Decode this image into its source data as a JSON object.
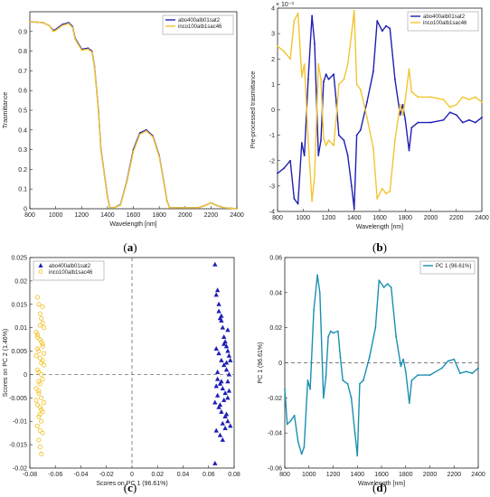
{
  "colors": {
    "blue": "#1f1fb4",
    "yellow": "#f2c531",
    "teal": "#1b8fb2",
    "orange": "#e07a3c",
    "axis": "#222222",
    "dash": "#555555"
  },
  "chart_data": [
    {
      "id": "a",
      "type": "line",
      "caption": "a",
      "xlabel": "Wavelength [nm]",
      "ylabel": "Trasmittance",
      "xlim": [
        800,
        2400
      ],
      "ylim": [
        0,
        1
      ],
      "xticks": [
        "800",
        "1000",
        "1200",
        "1400",
        "1600",
        "1800",
        "2000",
        "2200",
        "2400"
      ],
      "yticks": [
        "0",
        "0.1",
        "0.2",
        "0.3",
        "0.4",
        "0.5",
        "0.6",
        "0.7",
        "0.8",
        "0.9"
      ],
      "legend": [
        "abo400alb01sat2",
        "inco100alb1sac46"
      ],
      "legend_position": "top-right",
      "series": [
        {
          "name": "abo400alb01sat2",
          "color": "#1f1fb4",
          "x": [
            800,
            900,
            950,
            980,
            1000,
            1050,
            1100,
            1130,
            1150,
            1200,
            1250,
            1280,
            1300,
            1330,
            1350,
            1400,
            1420,
            1450,
            1500,
            1550,
            1600,
            1650,
            1700,
            1750,
            1800,
            1840,
            1860,
            1880,
            1900,
            2000,
            2100,
            2150,
            2200,
            2250,
            2300,
            2400
          ],
          "y": [
            0.95,
            0.945,
            0.93,
            0.905,
            0.91,
            0.935,
            0.945,
            0.925,
            0.865,
            0.81,
            0.815,
            0.8,
            0.72,
            0.5,
            0.3,
            0.06,
            0.005,
            0.005,
            0.02,
            0.14,
            0.3,
            0.385,
            0.4,
            0.37,
            0.27,
            0.12,
            0.04,
            0.005,
            0.005,
            0.005,
            0.005,
            0.015,
            0.03,
            0.015,
            0.005,
            0.0
          ]
        },
        {
          "name": "inco100alb1sac46",
          "color": "#f2c531",
          "x": [
            800,
            900,
            950,
            980,
            1000,
            1050,
            1100,
            1130,
            1150,
            1200,
            1250,
            1280,
            1300,
            1330,
            1350,
            1400,
            1420,
            1450,
            1500,
            1550,
            1600,
            1650,
            1700,
            1750,
            1800,
            1840,
            1860,
            1880,
            1900,
            2000,
            2100,
            2150,
            2200,
            2250,
            2300,
            2400
          ],
          "y": [
            0.95,
            0.945,
            0.93,
            0.9,
            0.905,
            0.93,
            0.94,
            0.92,
            0.86,
            0.805,
            0.81,
            0.795,
            0.715,
            0.495,
            0.295,
            0.058,
            0.005,
            0.005,
            0.018,
            0.135,
            0.29,
            0.378,
            0.395,
            0.365,
            0.265,
            0.118,
            0.038,
            0.005,
            0.005,
            0.005,
            0.005,
            0.015,
            0.03,
            0.015,
            0.005,
            0.0
          ]
        }
      ]
    },
    {
      "id": "b",
      "type": "line",
      "caption": "b",
      "xlabel": "Wavelength [nm]",
      "ylabel": "Pre-processed trasmittance",
      "exponent": "× 10⁻³",
      "xlim": [
        800,
        2400
      ],
      "ylim": [
        -4,
        4
      ],
      "xticks": [
        "800",
        "1000",
        "1200",
        "1400",
        "1600",
        "1800",
        "2000",
        "2200",
        "2400"
      ],
      "yticks": [
        "-4",
        "-3",
        "-2",
        "-1",
        "0",
        "1",
        "2",
        "3",
        "4"
      ],
      "legend": [
        "abo400alb01sat2",
        "inco100alb1sac46"
      ],
      "legend_position": "top-right",
      "series": [
        {
          "name": "abo400alb01sat2",
          "color": "#1f1fb4",
          "x": [
            800,
            850,
            900,
            930,
            960,
            990,
            1010,
            1040,
            1070,
            1090,
            1120,
            1140,
            1160,
            1180,
            1200,
            1240,
            1260,
            1280,
            1320,
            1350,
            1380,
            1400,
            1420,
            1450,
            1500,
            1550,
            1580,
            1620,
            1650,
            1680,
            1720,
            1760,
            1780,
            1800,
            1830,
            1850,
            1900,
            2000,
            2100,
            2150,
            2200,
            2250,
            2300,
            2350,
            2400
          ],
          "y": [
            -2.5,
            -2.3,
            -2.0,
            -3.5,
            -3.7,
            -1.3,
            -1.8,
            1.2,
            3.7,
            2.6,
            -1.8,
            -1.2,
            1.1,
            1.4,
            1.2,
            1.4,
            0.3,
            -1.0,
            -1.2,
            -1.8,
            -3.0,
            -3.9,
            -1.0,
            -0.8,
            0.3,
            1.5,
            3.5,
            3.1,
            3.3,
            3.2,
            1.2,
            -0.2,
            0.2,
            -0.4,
            -1.6,
            -0.7,
            -0.5,
            -0.5,
            -0.4,
            -0.1,
            -0.2,
            -0.5,
            -0.4,
            -0.5,
            -0.3
          ]
        },
        {
          "name": "inco100alb1sac46",
          "color": "#f2c531",
          "x": [
            800,
            850,
            900,
            930,
            960,
            990,
            1010,
            1040,
            1070,
            1090,
            1120,
            1140,
            1160,
            1180,
            1200,
            1240,
            1260,
            1280,
            1320,
            1350,
            1380,
            1400,
            1420,
            1450,
            1500,
            1550,
            1580,
            1620,
            1650,
            1680,
            1720,
            1760,
            1780,
            1800,
            1830,
            1850,
            1900,
            2000,
            2100,
            2150,
            2200,
            2250,
            2300,
            2350,
            2400
          ],
          "y": [
            2.5,
            2.3,
            2.0,
            3.5,
            3.8,
            1.3,
            1.8,
            -1.2,
            -3.6,
            -2.6,
            1.8,
            1.2,
            -1.1,
            -1.4,
            -1.2,
            -1.4,
            -0.3,
            1.0,
            1.2,
            1.8,
            3.0,
            3.9,
            1.0,
            0.8,
            -0.3,
            -1.5,
            -3.5,
            -3.1,
            -3.3,
            -3.2,
            -1.2,
            0.2,
            -0.2,
            0.4,
            1.6,
            0.7,
            0.5,
            0.5,
            0.4,
            0.1,
            0.2,
            0.5,
            0.4,
            0.5,
            0.3
          ]
        }
      ]
    },
    {
      "id": "c",
      "type": "scatter",
      "caption": "c",
      "xlabel": "Scores on PC 1 (96.61%)",
      "ylabel": "Scores on PC 2 (1.46%)",
      "xlim": [
        -0.08,
        0.08
      ],
      "ylim": [
        -0.02,
        0.025
      ],
      "xticks": [
        "-0.08",
        "-0.06",
        "-0.04",
        "-0.02",
        "0",
        "0.02",
        "0.04",
        "0.06",
        "0.08"
      ],
      "yticks": [
        "-0.02",
        "-0.015",
        "-0.01",
        "-0.005",
        "0",
        "0.005",
        "0.01",
        "0.015",
        "0.02",
        "0.025"
      ],
      "legend": [
        "abo400alb01sat2",
        "inco100alb1sac46"
      ],
      "legend_position": "top-left",
      "series": [
        {
          "name": "abo400alb01sat2",
          "marker": "triangle",
          "color": "#1f1fb4",
          "x": [
            0.065,
            0.066,
            0.067,
            0.068,
            0.069,
            0.07,
            0.071,
            0.072,
            0.073,
            0.074,
            0.075,
            0.076,
            0.077,
            0.066,
            0.068,
            0.07,
            0.072,
            0.074,
            0.076,
            0.067,
            0.069,
            0.071,
            0.073,
            0.075,
            0.065,
            0.068,
            0.07,
            0.073,
            0.075,
            0.077,
            0.066,
            0.069,
            0.071,
            0.074,
            0.076,
            0.067,
            0.07,
            0.072,
            0.075,
            0.068,
            0.071,
            0.073,
            0.066,
            0.069,
            0.072,
            0.074,
            0.07,
            0.075,
            0.067,
            0.065
          ],
          "y": [
            0.0235,
            0.017,
            0.018,
            0.015,
            0.012,
            0.0125,
            0.01,
            0.008,
            0.007,
            0.006,
            0.005,
            0.004,
            0.003,
            0.0055,
            0.0045,
            0.003,
            0.002,
            0.001,
            0.0,
            -0.001,
            -0.002,
            -0.003,
            -0.004,
            -0.005,
            -0.006,
            -0.007,
            -0.008,
            -0.009,
            -0.01,
            -0.011,
            -0.012,
            -0.013,
            -0.014,
            -0.0085,
            -0.0035,
            0.0005,
            -0.0015,
            0.0065,
            0.0095,
            0.0135,
            -0.0105,
            -0.0115,
            -0.0025,
            -0.0065,
            -0.0055,
            0.0025,
            0.0115,
            -0.0015,
            -0.0045,
            -0.019
          ]
        },
        {
          "name": "inco100alb1sac46",
          "marker": "circle",
          "color": "#f2c531",
          "x": [
            -0.074,
            -0.073,
            -0.072,
            -0.071,
            -0.07,
            -0.069,
            -0.075,
            -0.074,
            -0.072,
            -0.071,
            -0.07,
            -0.073,
            -0.075,
            -0.072,
            -0.07,
            -0.069,
            -0.074,
            -0.073,
            -0.071,
            -0.07,
            -0.072,
            -0.075,
            -0.073,
            -0.071,
            -0.069,
            -0.074,
            -0.072,
            -0.07,
            -0.073,
            -0.071,
            -0.074,
            -0.072,
            -0.07,
            -0.075,
            -0.073,
            -0.071,
            -0.069,
            -0.074,
            -0.072,
            -0.07,
            -0.073,
            -0.071,
            -0.072,
            -0.074,
            -0.07,
            -0.073,
            -0.071,
            -0.072
          ],
          "y": [
            0.0165,
            0.015,
            0.013,
            0.012,
            0.011,
            0.01,
            0.009,
            0.008,
            0.0075,
            0.007,
            0.006,
            0.005,
            0.004,
            0.0035,
            0.003,
            0.002,
            0.001,
            0.0005,
            0.0,
            -0.001,
            -0.002,
            -0.003,
            -0.004,
            -0.005,
            -0.006,
            -0.0065,
            -0.007,
            -0.008,
            -0.009,
            -0.01,
            -0.011,
            -0.012,
            -0.0125,
            -0.0055,
            -0.0015,
            0.0025,
            0.0045,
            0.0085,
            0.0105,
            0.0145,
            -0.0035,
            -0.0075,
            -0.0085,
            0.0055,
            0.0065,
            -0.014,
            -0.017,
            -0.0155
          ]
        }
      ]
    },
    {
      "id": "d",
      "type": "line",
      "caption": "d",
      "xlabel": "Wavelength [nm]",
      "ylabel": "PC 1 (96.61%)",
      "xlim": [
        800,
        2400
      ],
      "ylim": [
        -0.06,
        0.06
      ],
      "xticks": [
        "800",
        "1000",
        "1200",
        "1400",
        "1600",
        "1800",
        "2000",
        "2200",
        "2400"
      ],
      "yticks": [
        "-0.06",
        "-0.04",
        "-0.02",
        "0",
        "0.02",
        "0.04",
        "0.06"
      ],
      "legend": [
        "PC 1 (96.61%)"
      ],
      "legend_position": "top-right",
      "series": [
        {
          "name": "PC 1 (96.61%)",
          "color": "#1b8fb2",
          "x": [
            800,
            820,
            850,
            880,
            910,
            940,
            960,
            990,
            1010,
            1040,
            1070,
            1090,
            1120,
            1140,
            1160,
            1180,
            1200,
            1240,
            1260,
            1280,
            1320,
            1350,
            1380,
            1400,
            1420,
            1450,
            1500,
            1550,
            1580,
            1620,
            1650,
            1680,
            1720,
            1760,
            1780,
            1800,
            1830,
            1850,
            1900,
            2000,
            2100,
            2150,
            2200,
            2250,
            2300,
            2350,
            2400
          ],
          "y": [
            -0.015,
            -0.035,
            -0.033,
            -0.03,
            -0.045,
            -0.052,
            -0.048,
            -0.01,
            -0.015,
            0.03,
            0.05,
            0.04,
            -0.02,
            -0.008,
            0.015,
            0.018,
            0.017,
            0.018,
            0.003,
            -0.01,
            -0.012,
            -0.02,
            -0.04,
            -0.053,
            -0.012,
            -0.01,
            0.003,
            0.02,
            0.047,
            0.043,
            0.045,
            0.043,
            0.015,
            -0.002,
            0.002,
            -0.005,
            -0.023,
            -0.01,
            -0.007,
            -0.007,
            -0.003,
            0.001,
            0.002,
            -0.006,
            -0.005,
            -0.006,
            -0.003
          ]
        }
      ]
    }
  ]
}
